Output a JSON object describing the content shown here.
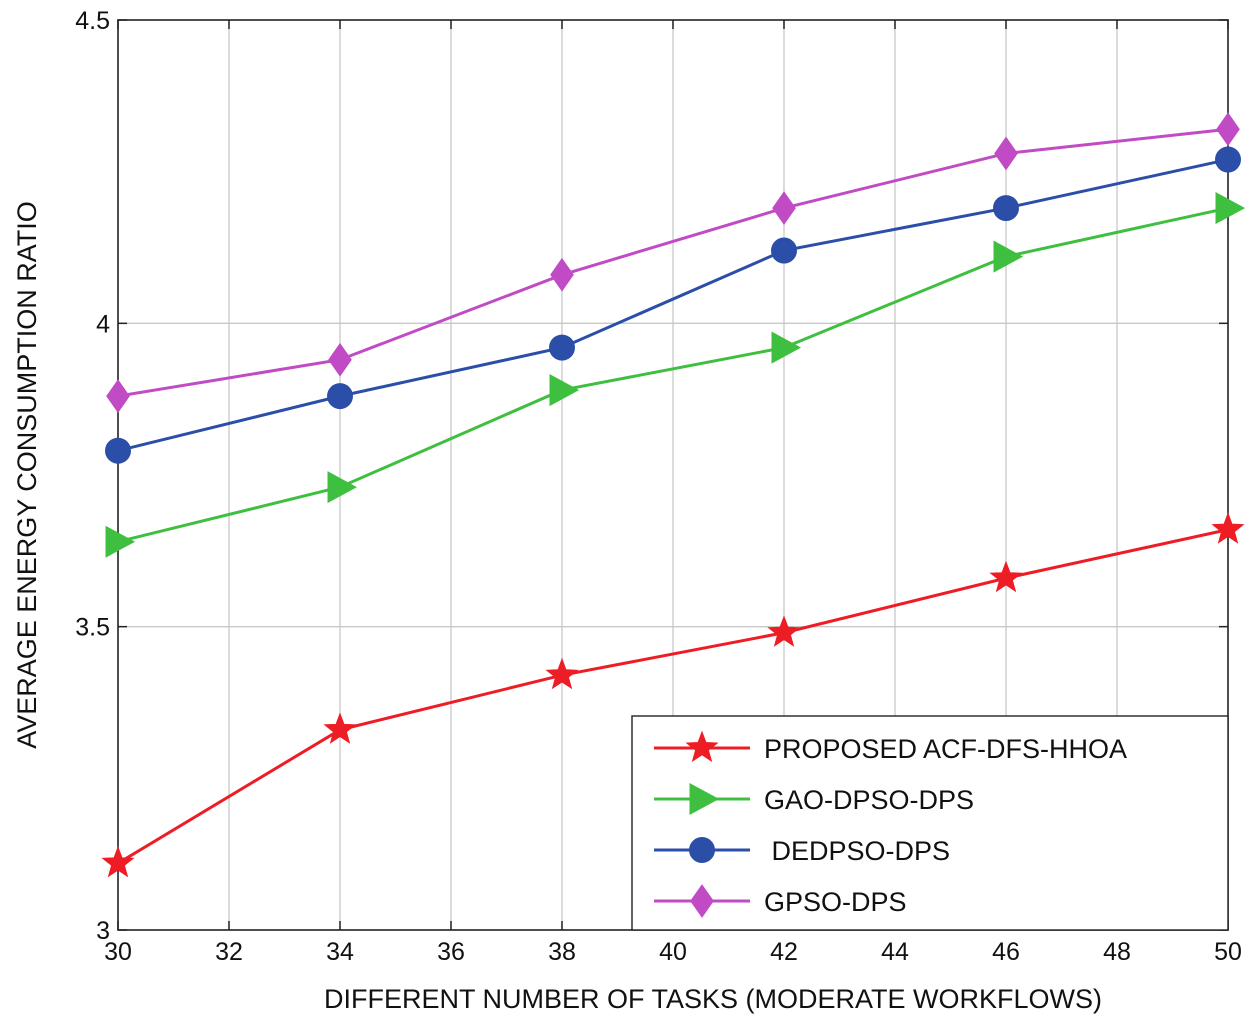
{
  "chart_data": {
    "type": "line",
    "title": "",
    "xlabel": "DIFFERENT NUMBER OF TASKS (MODERATE WORKFLOWS)",
    "ylabel": "AVERAGE  ENERGY CONSUMPTION RATIO",
    "xlim": [
      30,
      50
    ],
    "ylim": [
      3,
      4.5
    ],
    "xticks": [
      30,
      32,
      34,
      36,
      38,
      40,
      42,
      44,
      46,
      48,
      50
    ],
    "yticks": [
      3,
      3.5,
      4,
      4.5
    ],
    "xtick_labels": [
      "30",
      "32",
      "34",
      "36",
      "38",
      "40",
      "42",
      "44",
      "46",
      "48",
      "50"
    ],
    "ytick_labels": [
      "3",
      "3.5",
      "4",
      "4.5"
    ],
    "grid": true,
    "legend_position": "bottom-right",
    "x": [
      30,
      34,
      38,
      42,
      46,
      50
    ],
    "series": [
      {
        "name": "PROPOSED ACF-DFS-HHOA",
        "color": "#ee1c25",
        "marker": "star",
        "values": [
          3.11,
          3.33,
          3.42,
          3.49,
          3.58,
          3.66
        ]
      },
      {
        "name": "GAO-DPSO-DPS",
        "color": "#3fbf3f",
        "marker": "triangle-right",
        "values": [
          3.64,
          3.73,
          3.89,
          3.96,
          4.11,
          4.19
        ]
      },
      {
        "name": " DEDPSO-DPS",
        "color": "#2b4ea8",
        "marker": "circle",
        "values": [
          3.79,
          3.88,
          3.96,
          4.12,
          4.19,
          4.27
        ]
      },
      {
        "name": "GPSO-DPS",
        "color": "#c04bc4",
        "marker": "diamond",
        "values": [
          3.88,
          3.94,
          4.08,
          4.19,
          4.28,
          4.32
        ]
      }
    ]
  }
}
